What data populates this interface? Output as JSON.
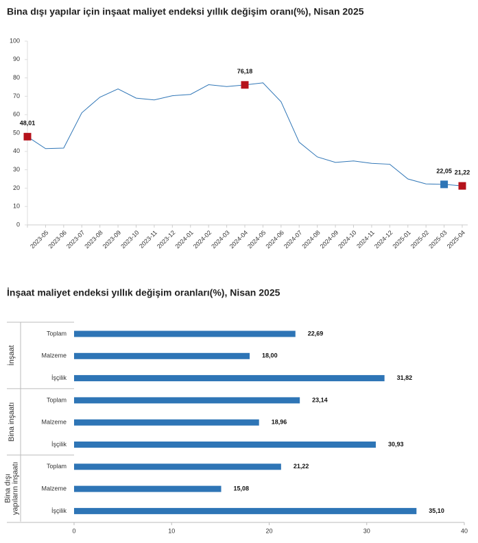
{
  "chart_data": [
    {
      "type": "line",
      "title": "Bina dışı yapılar için inşaat maliyet endeksi yıllık değişim oranı(%), Nisan 2025",
      "categories": [
        null,
        "2023-05",
        "2023-06",
        "2023-07",
        "2023-08",
        "2023-09",
        "2023-10",
        "2023-11",
        "2023-12",
        "2024-01",
        "2024-02",
        "2024-03",
        "2024-04",
        "2024-05",
        "2024-06",
        "2024-07",
        "2024-08",
        "2024-09",
        "2024-10",
        "2024-11",
        "2024-12",
        "2025-01",
        "2025-02",
        "2025-03",
        "2025-04"
      ],
      "values": [
        48.01,
        41.5,
        41.8,
        61,
        69.5,
        74,
        69,
        68,
        70.3,
        71,
        76.3,
        75.3,
        76.18,
        77.3,
        67,
        45,
        37,
        34,
        34.8,
        33.5,
        33,
        25,
        22.3,
        22.05,
        21.22
      ],
      "value_labels": [
        "48,01",
        null,
        null,
        null,
        null,
        null,
        null,
        null,
        null,
        null,
        null,
        null,
        "76,18",
        null,
        null,
        null,
        null,
        null,
        null,
        null,
        null,
        null,
        null,
        "22,05",
        "21,22"
      ],
      "marker_colors": [
        "#b5121b",
        null,
        null,
        null,
        null,
        null,
        null,
        null,
        null,
        null,
        null,
        null,
        "#b5121b",
        null,
        null,
        null,
        null,
        null,
        null,
        null,
        null,
        null,
        null,
        "#2e75b6",
        "#b5121b"
      ],
      "color": "#2e75b6",
      "ylim": [
        0,
        100
      ],
      "yticks": [
        0,
        10,
        20,
        30,
        40,
        50,
        60,
        70,
        80,
        90,
        100
      ]
    },
    {
      "type": "hbar",
      "title": "İnşaat maliyet endeksi yıllık değişim oranları(%), Nisan 2025",
      "groups": [
        {
          "name": [
            "İnşaat"
          ],
          "categories": [
            "Toplam",
            "Malzeme",
            "İşçilik"
          ],
          "values": [
            22.69,
            18.0,
            31.82
          ],
          "value_labels": [
            "22,69",
            "18,00",
            "31,82"
          ]
        },
        {
          "name": [
            "Bina inşaatı"
          ],
          "categories": [
            "Toplam",
            "Malzeme",
            "İşçilik"
          ],
          "values": [
            23.14,
            18.96,
            30.93
          ],
          "value_labels": [
            "23,14",
            "18,96",
            "30,93"
          ]
        },
        {
          "name": [
            "Bina dışı",
            "yapıların inşaatı"
          ],
          "categories": [
            "Toplam",
            "Malzeme",
            "İşçilik"
          ],
          "values": [
            21.22,
            15.08,
            35.1
          ],
          "value_labels": [
            "21,22",
            "15,08",
            "35,10"
          ]
        }
      ],
      "color": "#2e75b6",
      "xlim": [
        0,
        40
      ],
      "xticks": [
        0,
        10,
        20,
        30,
        40
      ]
    }
  ]
}
